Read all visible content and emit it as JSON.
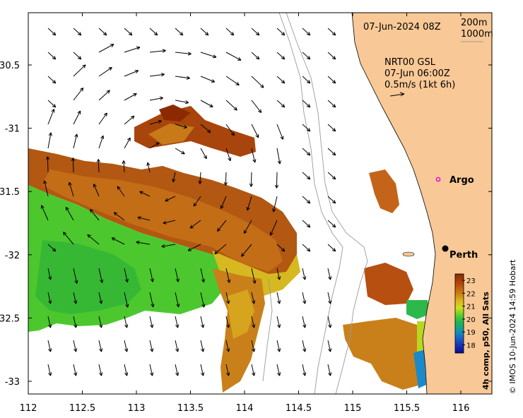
{
  "map": {
    "date_label": "07-Jun-2024 08Z",
    "depth_contours": [
      "200m",
      "1000m"
    ],
    "current_source": "NRT00 GSL",
    "current_time": "07-Jun 06:00Z",
    "current_scale": "0.5m/s (1kt 6h)",
    "argo_label": "Argo",
    "city_label": "Perth",
    "credit": "© IMOS 10-Jun-2024 14:59 Hobart",
    "colorbar_title": "4h comp, p50, All Sats",
    "colorbar_ticks": [
      "23",
      "22",
      "21",
      "20",
      "19",
      "18"
    ],
    "colorbar_colors": [
      "#8b2a00",
      "#b5470a",
      "#cc7a10",
      "#dcb41e",
      "#cfdf1f",
      "#5cd02a",
      "#22b84a",
      "#14a48a",
      "#1482c8",
      "#1a46c6",
      "#0a0a9a"
    ],
    "lon_ticks": [
      "112",
      "112.5",
      "113",
      "113.5",
      "114",
      "114.5",
      "115",
      "115.5",
      "116"
    ],
    "lat_ticks": [
      "-30.5",
      "-31",
      "-31.5",
      "-32",
      "-32.5",
      "-33"
    ],
    "land_color": "#f8c896"
  }
}
